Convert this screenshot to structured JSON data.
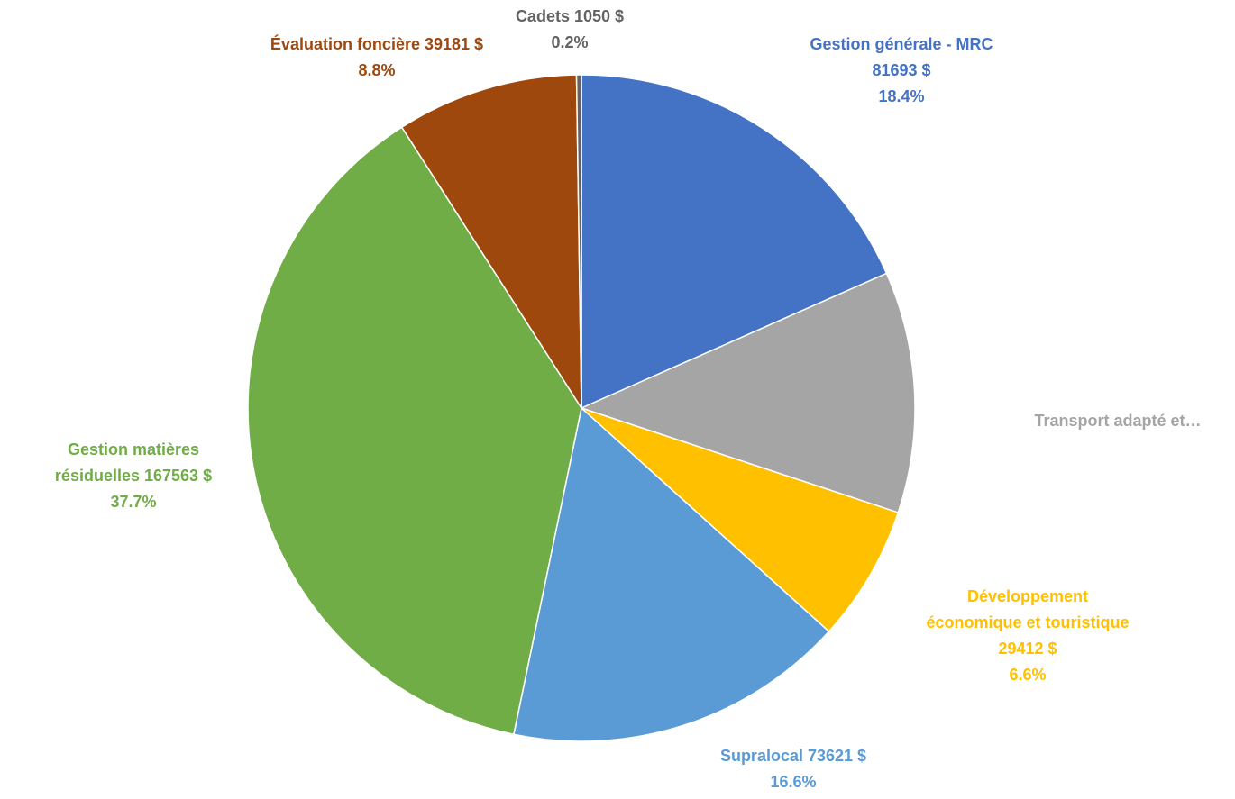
{
  "chart_data": {
    "type": "pie",
    "categories": [
      "Gestion générale - MRC",
      "Transport adapté et…",
      "Développement économique et touristique",
      "Supralocal",
      "Gestion matières résiduelles",
      "Évaluation foncière",
      "Cadets"
    ],
    "values": [
      81693,
      52010,
      29412,
      73621,
      167563,
      39181,
      1050
    ],
    "value_labels": [
      "81693 $",
      null,
      "29412 $",
      "73621 $",
      "167563 $",
      "39181 $",
      "1050 $"
    ],
    "percent_labels": [
      "18.4%",
      null,
      "6.6%",
      "16.6%",
      "37.7%",
      "8.8%",
      "0.2%"
    ],
    "colors": [
      "#4472c4",
      "#a5a5a5",
      "#ffc000",
      "#5b9bd5",
      "#70ad47",
      "#9e480e",
      "#636363"
    ]
  }
}
